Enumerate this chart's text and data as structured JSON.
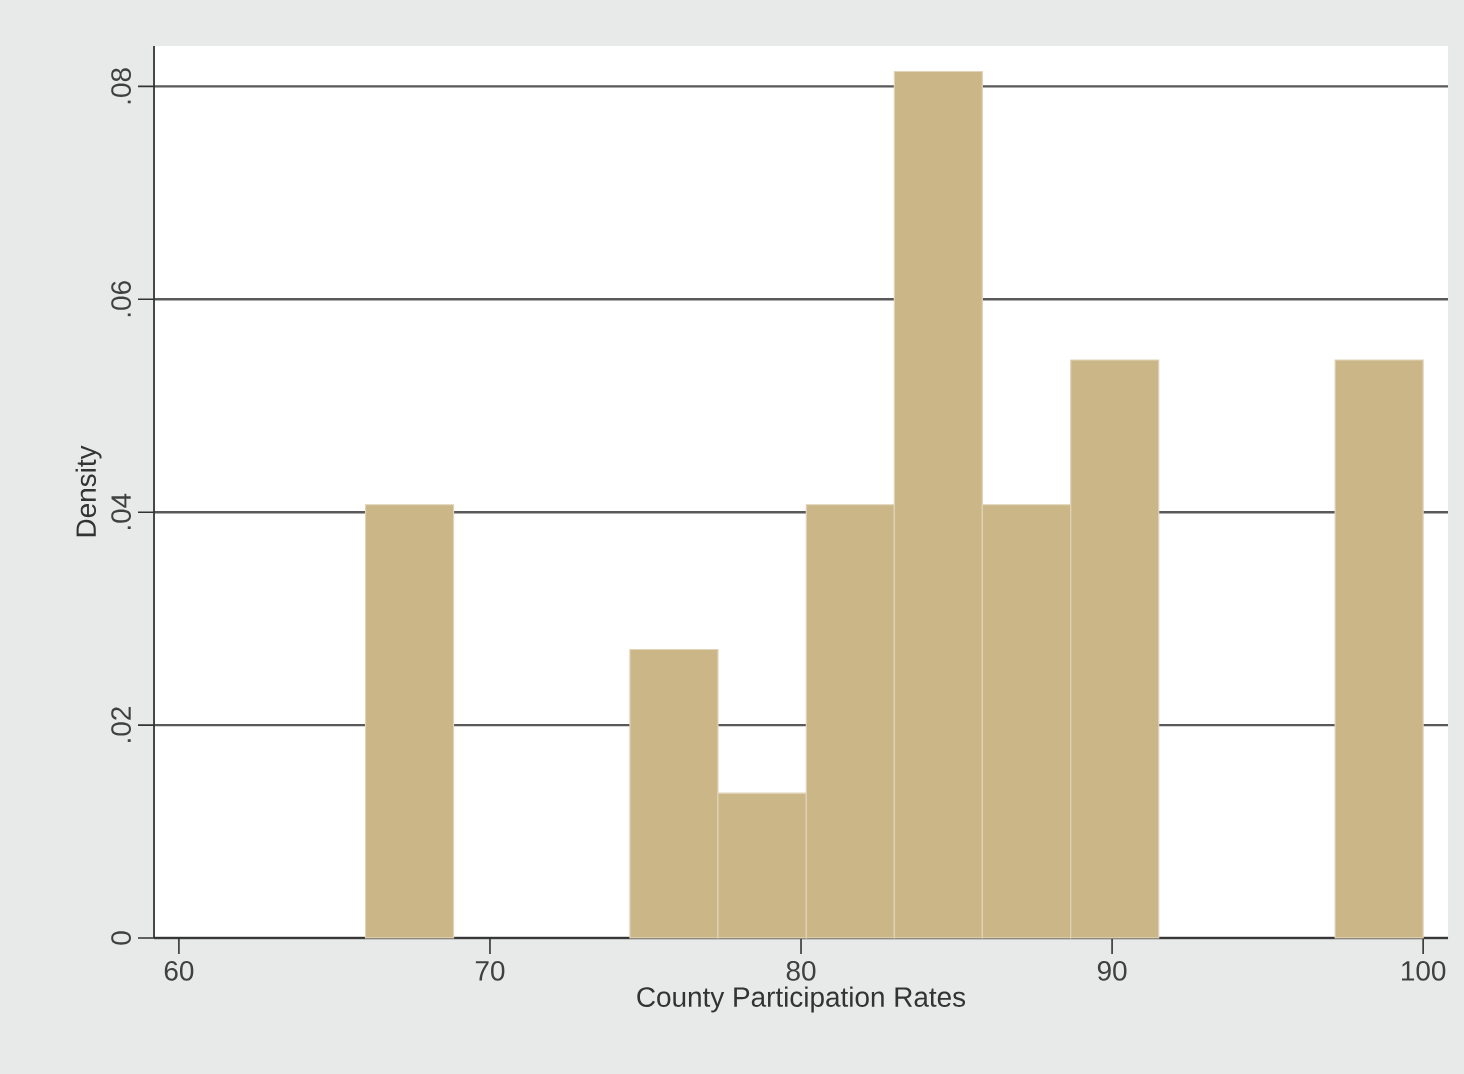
{
  "chart_data": {
    "type": "histogram",
    "xlabel": "County Participation Rates",
    "ylabel": "Density",
    "bins": [
      66,
      68.83,
      71.67,
      74.5,
      77.33,
      80.17,
      83,
      85.83,
      88.67,
      91.5,
      94.33,
      97.17,
      100
    ],
    "values": [
      0.0407,
      0,
      0,
      0.0271,
      0.0136,
      0.0407,
      0.0814,
      0.0407,
      0.0543,
      0,
      0,
      0.0543
    ],
    "color": "#cbb688",
    "xlim": [
      59.2,
      100.8
    ],
    "ylim": [
      0,
      0.0838
    ],
    "xticks": [
      60,
      70,
      80,
      90,
      100
    ],
    "yticks": [
      0,
      {
        "value": 0.02,
        "label": ".02"
      },
      {
        "value": 0.04,
        "label": ".04"
      },
      {
        "value": 0.06,
        "label": ".06"
      },
      {
        "value": 0.08,
        "label": ".08"
      }
    ],
    "grid": "y"
  }
}
